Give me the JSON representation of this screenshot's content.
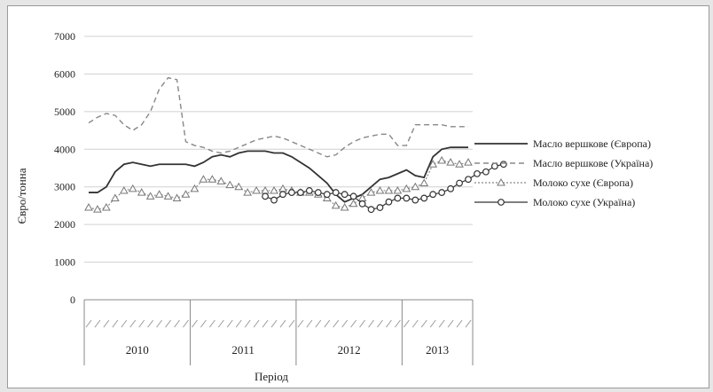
{
  "chart_data": {
    "type": "line",
    "ylabel": "Євро/тонна",
    "xlabel": "Період",
    "ylim": [
      0,
      7000
    ],
    "yticks": [
      0,
      1000,
      2000,
      3000,
      4000,
      5000,
      6000,
      7000
    ],
    "grid": "horizontal",
    "legend_position": "right",
    "years": [
      "2010",
      "2011",
      "2012",
      "2013"
    ],
    "months_per_year": [
      12,
      12,
      12,
      8
    ],
    "series": [
      {
        "name": "Масло вершкове (Європа)",
        "style": "solid",
        "values": [
          2850,
          2850,
          3000,
          3400,
          3600,
          3650,
          3600,
          3550,
          3600,
          3600,
          3600,
          3600,
          3550,
          3650,
          3800,
          3850,
          3800,
          3900,
          3950,
          3950,
          3950,
          3900,
          3900,
          3800,
          3650,
          3500,
          3300,
          3100,
          2800,
          2600,
          2700,
          2800,
          3000,
          3200,
          3250,
          3350,
          3450,
          3300,
          3250,
          3800,
          4000,
          4050,
          4050,
          4050
        ]
      },
      {
        "name": "Масло вершкове (Україна)",
        "style": "dashed",
        "values": [
          4700,
          4850,
          4950,
          4900,
          4650,
          4500,
          4650,
          5000,
          5600,
          5900,
          5850,
          4200,
          4100,
          4050,
          3950,
          3900,
          3950,
          4050,
          4150,
          4250,
          4300,
          4350,
          4300,
          4200,
          4100,
          4000,
          3900,
          3800,
          3850,
          4050,
          4200,
          4300,
          4350,
          4400,
          4400,
          4100,
          4100,
          4650,
          4650,
          4650,
          4650,
          4600,
          4600,
          4600
        ]
      },
      {
        "name": "Молоко сухе (Європа)",
        "style": "dotted-triangle",
        "values": [
          2450,
          2400,
          2450,
          2700,
          2900,
          2950,
          2850,
          2750,
          2800,
          2750,
          2700,
          2800,
          2950,
          3200,
          3200,
          3150,
          3050,
          3000,
          2850,
          2900,
          2900,
          2900,
          2950,
          2900,
          2850,
          2850,
          2800,
          2700,
          2500,
          2450,
          2550,
          2700,
          2850,
          2900,
          2900,
          2900,
          2950,
          3000,
          3100,
          3600,
          3700,
          3650,
          3600,
          3650
        ]
      },
      {
        "name": "Молоко сухе (Україна)",
        "style": "solid-diamond",
        "start_month": 20,
        "values": [
          2750,
          2650,
          2800,
          2850,
          2850,
          2900,
          2850,
          2800,
          2850,
          2800,
          2750,
          2550,
          2400,
          2450,
          2600,
          2700,
          2700,
          2650,
          2700,
          2800,
          2850,
          2950,
          3100,
          3200,
          3350,
          3400,
          3550,
          3600
        ]
      }
    ]
  }
}
